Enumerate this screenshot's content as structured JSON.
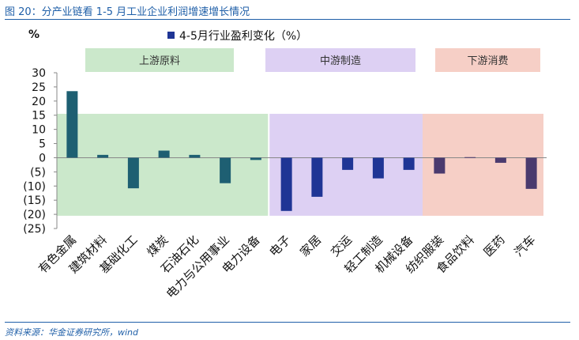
{
  "figure_title": "图 20：分产业链看 1-5 月工业企业利润增速增长情况",
  "source": "资料来源：华金证券研究所，wind",
  "chart_data": {
    "type": "bar",
    "title": "",
    "ylabel": "%",
    "xlabel": "",
    "ylim": [
      -25,
      30
    ],
    "yticks": [
      30,
      25,
      20,
      15,
      10,
      5,
      0,
      -5,
      -10,
      -15,
      -20,
      -25
    ],
    "ytick_labels": [
      "30",
      "25",
      "20",
      "15",
      "10",
      "5",
      "0",
      "(5)",
      "(10)",
      "(15)",
      "(20)",
      "(25)"
    ],
    "legend": "4-5月行业盈利变化（%）",
    "categories": [
      "有色金属",
      "建筑材料",
      "基础化工",
      "煤炭",
      "石油石化",
      "电力与公用事业",
      "电力设备",
      "电子",
      "家居",
      "交运",
      "轻工制造",
      "机械设备",
      "纺织服装",
      "食品饮料",
      "医药",
      "汽车"
    ],
    "values": [
      23.5,
      1.0,
      -10.8,
      2.5,
      1.0,
      -9.0,
      -0.8,
      -18.8,
      -13.8,
      -4.3,
      -7.3,
      -4.3,
      -5.6,
      0.2,
      -1.8,
      -11.0
    ],
    "groups": [
      {
        "label": "上游原料",
        "from": 0,
        "to": 6,
        "color": "#cbe8cb"
      },
      {
        "label": "中游制造",
        "from": 7,
        "to": 11,
        "color": "#ddd0f3"
      },
      {
        "label": "下游消费",
        "from": 12,
        "to": 15,
        "color": "#f6cfc6"
      }
    ],
    "series_colors": {
      "upstream": "#1e5f72",
      "midstream": "#1f3595",
      "downstream": "#4a3a6e"
    }
  }
}
